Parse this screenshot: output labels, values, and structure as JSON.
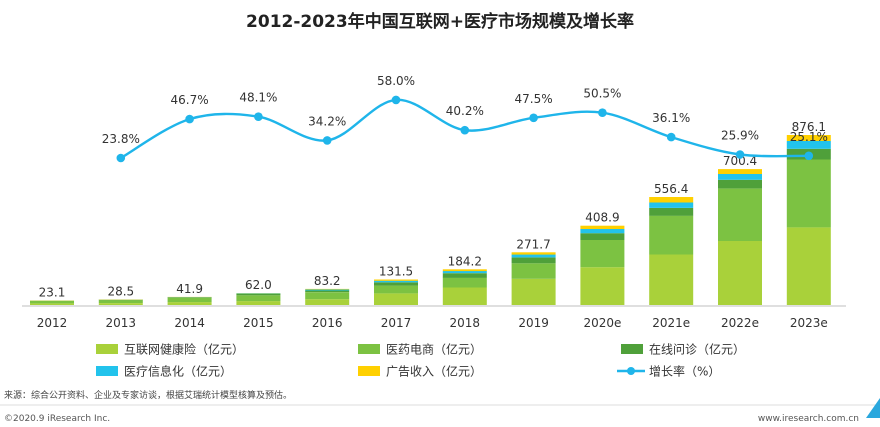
{
  "chart_data": {
    "type": "bar",
    "stacked": true,
    "title": "2012-2023年中国互联网+医疗市场规模及增长率",
    "categories": [
      "2012",
      "2013",
      "2014",
      "2015",
      "2016",
      "2017",
      "2018",
      "2019",
      "2020e",
      "2021e",
      "2022e",
      "2023e"
    ],
    "totals": [
      23.1,
      28.5,
      41.9,
      62.0,
      83.2,
      131.5,
      184.2,
      271.7,
      408.9,
      556.4,
      700.4,
      876.1
    ],
    "total_labels": [
      "23.1",
      "28.5",
      "41.9",
      "62.0",
      "83.2",
      "131.5",
      "184.2",
      "271.7",
      "408.9",
      "556.4",
      "700.4",
      "876.1"
    ],
    "series": [
      {
        "name": "互联网健康险（亿元）",
        "color": "#a9d13a",
        "values": [
          8,
          10,
          15,
          20,
          30,
          60,
          90,
          135,
          195,
          260,
          330,
          400
        ]
      },
      {
        "name": "医药电商（亿元）",
        "color": "#7cc242",
        "values": [
          13,
          15,
          22,
          30,
          36,
          40,
          50,
          80,
          140,
          200,
          270,
          350
        ]
      },
      {
        "name": "在线问诊（亿元）",
        "color": "#4fa03a",
        "values": [
          1.5,
          2.5,
          3.5,
          7,
          9,
          17,
          24,
          30,
          35,
          40,
          45,
          55
        ]
      },
      {
        "name": "医疗信息化（亿元）",
        "color": "#22c3ec",
        "values": [
          0.4,
          0.7,
          0.9,
          3,
          5,
          8,
          11,
          15,
          22,
          28,
          30,
          40
        ]
      },
      {
        "name": "广告收入（亿元）",
        "color": "#ffd000",
        "values": [
          0.2,
          0.3,
          0.5,
          2,
          3.2,
          6.5,
          9.2,
          11.7,
          16.9,
          28.4,
          25.4,
          31.1
        ]
      }
    ],
    "growth": {
      "name": "增长率（%）",
      "color": "#1fb5ea",
      "values": [
        null,
        23.8,
        46.7,
        48.1,
        34.2,
        58.0,
        40.2,
        47.5,
        50.5,
        36.1,
        25.9,
        25.1
      ],
      "labels": [
        "",
        "23.8%",
        "46.7%",
        "48.1%",
        "34.2%",
        "58.0%",
        "40.2%",
        "47.5%",
        "50.5%",
        "36.1%",
        "25.9%",
        "25.1%"
      ]
    },
    "grid": false,
    "legend_placement": "bottom"
  },
  "source": "来源：综合公开资料、企业及专家访谈，根据艾瑞统计模型核算及预估。",
  "copyright": "©2020.9 iResearch Inc.",
  "website": "www.iresearch.com.cn"
}
